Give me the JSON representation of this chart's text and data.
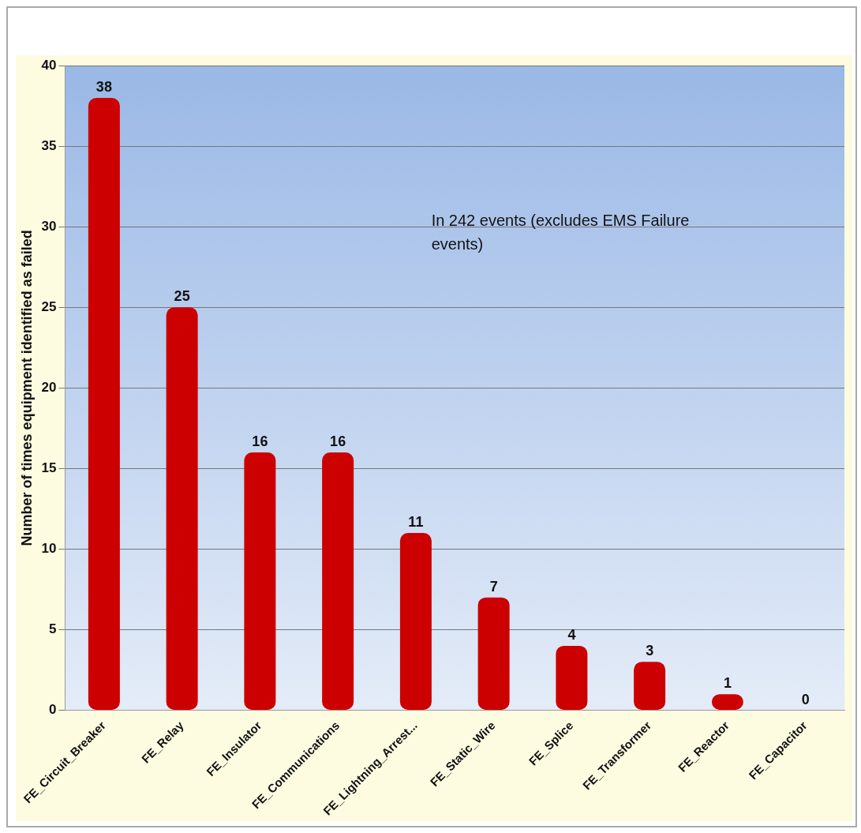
{
  "chart_data": {
    "type": "bar",
    "categories": [
      "FE_Circuit_Breaker",
      "FE_Relay",
      "FE_Insulator",
      "FE_Communications",
      "FE_Lightning_Arrest...",
      "FE_Static_Wire",
      "FE_Splice",
      "FE_Transformer",
      "FE_Reactor",
      "FE_Capacitor"
    ],
    "values": [
      38,
      25,
      16,
      16,
      11,
      7,
      4,
      3,
      1,
      0
    ],
    "color": "#cc0000",
    "ylabel": "Number of times equipment identified as failed",
    "ylim": [
      0,
      40
    ],
    "yticks": [
      0,
      5,
      10,
      15,
      20,
      25,
      30,
      35,
      40
    ],
    "grid": "y",
    "legend": false,
    "data_labels": true,
    "annotations": [
      "In 242 events (excludes EMS Failure events)"
    ]
  }
}
